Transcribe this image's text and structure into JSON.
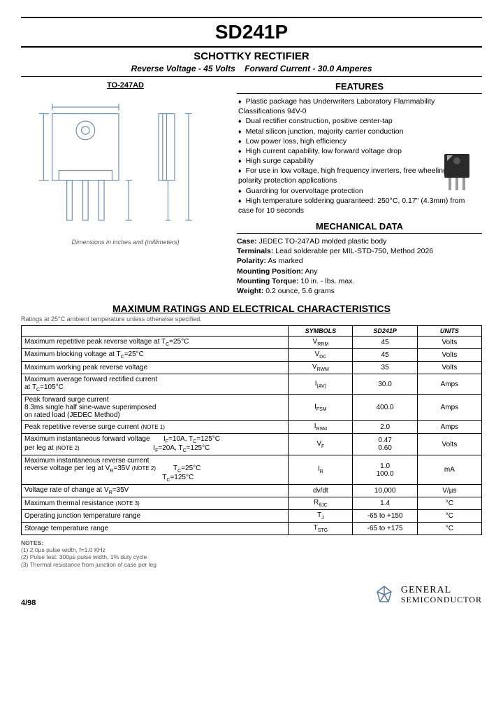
{
  "header": {
    "part_number": "SD241P",
    "product_type": "SCHOTTKY RECTIFIER",
    "spec_rv_label": "Reverse Voltage",
    "spec_rv_value": "- 45 Volts",
    "spec_fc_label": "Forward Current",
    "spec_fc_value": "- 30.0 Amperes"
  },
  "package": {
    "label": "TO-247AD",
    "dim_note": "Dimensions in inches and (millimeters)",
    "diagram_color": "#6a8aa8"
  },
  "features": {
    "heading": "FEATURES",
    "items": [
      "Plastic package has Underwriters Laboratory Flammability Classifications 94V-0",
      "Dual rectifier construction, positive center-tap",
      "Metal silicon junction, majority carrier conduction",
      "Low power loss, high efficiency",
      "High current capability, low forward voltage drop",
      "High surge capability",
      "For use in low voltage, high frequency inverters, free wheeling, and polarity protection applications",
      "Guardring for overvoltage protection",
      "High temperature soldering guaranteed: 250°C, 0.17\" (4.3mm) from case for 10 seconds"
    ]
  },
  "mechanical": {
    "heading": "MECHANICAL DATA",
    "case_label": "Case:",
    "case_value": "JEDEC TO-247AD molded plastic body",
    "terminals_label": "Terminals:",
    "terminals_value": "Lead solderable per MIL-STD-750, Method 2026",
    "polarity_label": "Polarity:",
    "polarity_value": "As marked",
    "mount_pos_label": "Mounting Position:",
    "mount_pos_value": "Any",
    "mount_torque_label": "Mounting Torque:",
    "mount_torque_value": "10 in. - lbs. max.",
    "weight_label": "Weight:",
    "weight_value": "0.2 ounce, 5.6 grams"
  },
  "ratings": {
    "heading": "MAXIMUM RATINGS AND ELECTRICAL CHARACTERISTICS",
    "condition_note": "Ratings at 25°C ambient temperature unless otherwise specified.",
    "columns": {
      "symbol": "SYMBOLS",
      "part": "SD241P",
      "units": "UNITS"
    },
    "rows": [
      {
        "param": "Maximum repetitive peak reverse voltage at T<sub>C</sub>=25°C",
        "symbol": "V<sub>RRM</sub>",
        "value": "45",
        "units": "Volts"
      },
      {
        "param": "Maximum blocking voltage at T<sub>C</sub>=25°C",
        "symbol": "V<sub>DC</sub>",
        "value": "45",
        "units": "Volts"
      },
      {
        "param": "Maximum working peak reverse voltage",
        "symbol": "V<sub>RWM</sub>",
        "value": "35",
        "units": "Volts"
      },
      {
        "param": "Maximum average forward rectified current<br>at T<sub>C</sub>=105°C",
        "symbol": "I<sub>(AV)</sub>",
        "value": "30.0",
        "units": "Amps"
      },
      {
        "param": "Peak forward surge current<br>8.3ms single half sine-wave superimposed<br>on rated load (JEDEC Method)",
        "symbol": "I<sub>FSM</sub>",
        "value": "400.0",
        "units": "Amps"
      },
      {
        "param": "Peak repetitive reverse surge current <span style='font-size:8px'>(NOTE 1)</span>",
        "symbol": "I<sub>RSM</sub>",
        "value": "2.0",
        "units": "Amps"
      },
      {
        "param": "Maximum instantaneous forward voltage&nbsp;&nbsp;&nbsp;&nbsp;&nbsp;&nbsp;&nbsp;I<sub>F</sub>=10A, T<sub>C</sub>=125°C<br>per leg at <span style='font-size:8px'>(NOTE 2)</span>&nbsp;&nbsp;&nbsp;&nbsp;&nbsp;&nbsp;&nbsp;&nbsp;&nbsp;&nbsp;&nbsp;&nbsp;&nbsp;&nbsp;&nbsp;&nbsp;&nbsp;&nbsp;&nbsp;&nbsp;&nbsp;&nbsp;&nbsp;&nbsp;&nbsp;&nbsp;&nbsp;&nbsp;&nbsp;&nbsp;&nbsp;&nbsp;&nbsp;&nbsp;&nbsp;&nbsp;&nbsp;&nbsp;I<sub>F</sub>=20A, T<sub>C</sub>=125°C",
        "symbol": "V<sub>F</sub>",
        "value": "0.47<br>0.60",
        "units": "Volts"
      },
      {
        "param": "Maximum instantaneous reverse current<br>reverse voltage per leg at V<sub>R</sub>=35V <span style='font-size:8px'>(NOTE 2)</span>&nbsp;&nbsp;&nbsp;&nbsp;&nbsp;&nbsp;&nbsp;&nbsp;&nbsp;T<sub>C</sub>=25°C<br>&nbsp;&nbsp;&nbsp;&nbsp;&nbsp;&nbsp;&nbsp;&nbsp;&nbsp;&nbsp;&nbsp;&nbsp;&nbsp;&nbsp;&nbsp;&nbsp;&nbsp;&nbsp;&nbsp;&nbsp;&nbsp;&nbsp;&nbsp;&nbsp;&nbsp;&nbsp;&nbsp;&nbsp;&nbsp;&nbsp;&nbsp;&nbsp;&nbsp;&nbsp;&nbsp;&nbsp;&nbsp;&nbsp;&nbsp;&nbsp;&nbsp;&nbsp;&nbsp;&nbsp;&nbsp;&nbsp;&nbsp;&nbsp;&nbsp;&nbsp;&nbsp;&nbsp;&nbsp;&nbsp;&nbsp;&nbsp;&nbsp;&nbsp;&nbsp;&nbsp;&nbsp;&nbsp;&nbsp;&nbsp;&nbsp;&nbsp;&nbsp;&nbsp;&nbsp;&nbsp;&nbsp;T<sub>C</sub>=125°C",
        "symbol": "I<sub>R</sub>",
        "value": "1.0<br>100.0",
        "units": "mA"
      },
      {
        "param": "Voltage rate of change at V<sub>R</sub>=35V",
        "symbol": "dv/dt",
        "value": "10,000",
        "units": "V/µs"
      },
      {
        "param": "Maximum thermal resistance <span style='font-size:8px'>(NOTE 3)</span>",
        "symbol": "R<sub>θJC</sub>",
        "value": "1.4",
        "units": "°C"
      },
      {
        "param": "Operating junction temperature range",
        "symbol": "T<sub>J</sub>",
        "value": "-65 to +150",
        "units": "°C"
      },
      {
        "param": "Storage temperature range",
        "symbol": "T<sub>STG</sub>",
        "value": "-65 to +175",
        "units": "°C"
      }
    ]
  },
  "notes": {
    "heading": "NOTES:",
    "items": [
      "(1) 2.0µs pulse width, f=1.0 KHz",
      "(2) Pulse test: 300µs pulse width, 1% duty cycle",
      "(3) Thermal resistance from junction of case per leg"
    ]
  },
  "footer": {
    "date_code": "4/98",
    "logo_top": "GENERAL",
    "logo_bottom": "SEMICONDUCTOR"
  },
  "colors": {
    "diagram_stroke": "#6a8aa8",
    "chip_body": "#2a2a2a",
    "chip_shine": "#888"
  }
}
